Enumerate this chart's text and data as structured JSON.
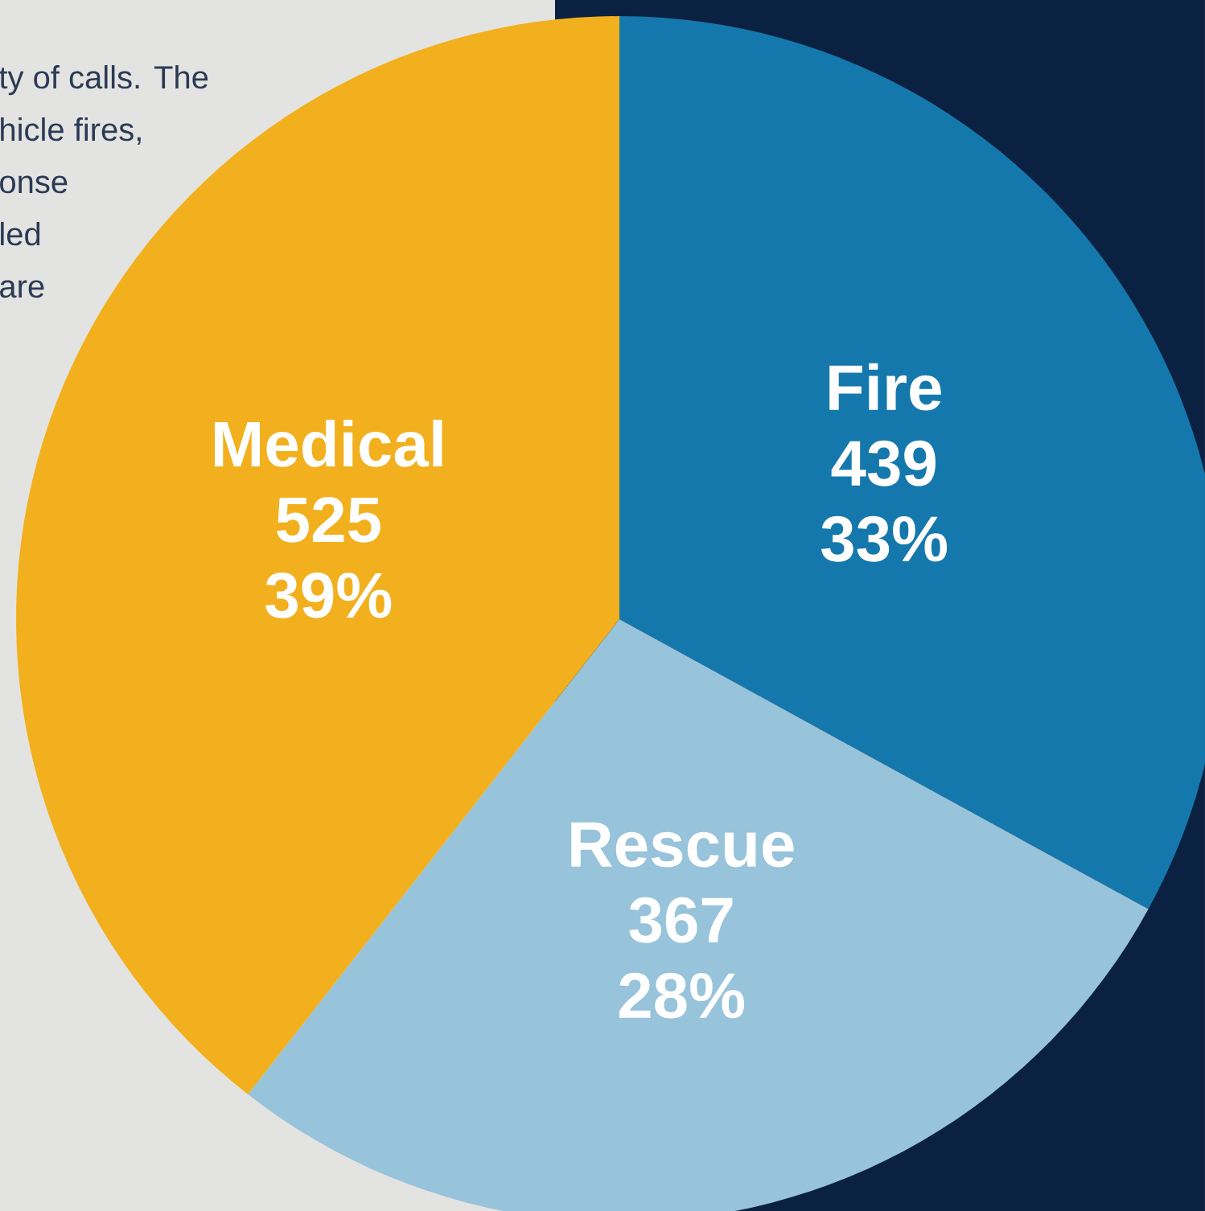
{
  "chart_data": {
    "type": "pie",
    "categories": [
      "Fire",
      "Rescue",
      "Medical"
    ],
    "values": [
      439,
      367,
      525
    ],
    "value_labels": [
      "439",
      "367",
      "525"
    ],
    "colors": [
      "#1578ad",
      "#97c3db",
      "#f2b01e"
    ],
    "annotations": [
      "ty of calls. The",
      "hicle fires,",
      "onse",
      "led",
      "are",
      {
        "text": "33%",
        "x": "Fire"
      },
      {
        "text": "28%",
        "x": "Rescue"
      },
      {
        "text": "39%",
        "x": "Medical"
      }
    ]
  }
}
